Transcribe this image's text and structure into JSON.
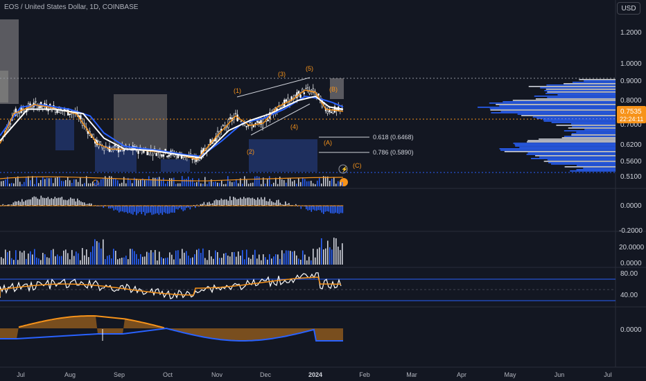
{
  "header": {
    "title": "EOS / United States Dollar, 1D, COINBASE",
    "currency_button": "USD"
  },
  "price_axis": {
    "ticks": [
      "1.2000",
      "1.0000",
      "0.9000",
      "0.8000",
      "0.6200",
      "0.5600",
      "0.5100"
    ],
    "hidden_tick": "0.7000",
    "current_price": "0.7535",
    "countdown": "22:24:11"
  },
  "macd_axis": {
    "ticks": [
      "0.0000",
      "-0.2000"
    ]
  },
  "volume_axis": {
    "ticks": [
      "20.0000",
      "0.0000"
    ]
  },
  "rsi_axis": {
    "ticks": [
      "80.00",
      "40.00"
    ]
  },
  "osc_axis": {
    "ticks": [
      "0.0000"
    ]
  },
  "time_axis": {
    "ticks": [
      "Jul",
      "Aug",
      "Sep",
      "Oct",
      "Nov",
      "Dec",
      "2024",
      "Feb",
      "Mar",
      "Apr",
      "May",
      "Jun",
      "Jul"
    ]
  },
  "annotations": {
    "waves": [
      "(1)",
      "(2)",
      "(3)",
      "(4)",
      "(5)",
      "(A)",
      "(B)",
      "(C)"
    ],
    "fib_618": "0.618 (0.6468)",
    "fib_786": "0.786 (0.5890)"
  },
  "colors": {
    "background": "#131722",
    "ema_fast": "#f7931a",
    "ema_slow": "#2962ff",
    "white_ma": "#ffffff",
    "candles": "#ffffff",
    "zone": "#1e2f5e",
    "grey_zone": "#4a4a4f",
    "dotted_level": "#f7931a",
    "profile": "#2962ff"
  },
  "chart_data": {
    "type": "line",
    "title": "EOS / United States Dollar, 1D, COINBASE",
    "x_range": [
      "Jul",
      "Jul"
    ],
    "price_ylim": [
      0.5,
      1.3
    ],
    "series": [
      {
        "points": [
          [
            0,
            0.62
          ],
          [
            20,
            0.74
          ],
          [
            50,
            0.78
          ],
          [
            70,
            0.77
          ],
          [
            110,
            0.74
          ],
          [
            140,
            0.62
          ],
          [
            160,
            0.6
          ],
          [
            190,
            0.6
          ],
          [
            230,
            0.59
          ],
          [
            260,
            0.58
          ],
          [
            285,
            0.565
          ],
          [
            310,
            0.64
          ],
          [
            340,
            0.73
          ],
          [
            360,
            0.69
          ],
          [
            380,
            0.7
          ],
          [
            400,
            0.77
          ],
          [
            420,
            0.8
          ],
          [
            440,
            0.85
          ],
          [
            455,
            0.84
          ],
          [
            470,
            0.76
          ],
          [
            495,
            0.75
          ]
        ]
      },
      {
        "points": [
          [
            0,
            0.65
          ],
          [
            30,
            0.77
          ],
          [
            60,
            0.78
          ],
          [
            100,
            0.76
          ],
          [
            130,
            0.73
          ],
          [
            150,
            0.66
          ],
          [
            180,
            0.61
          ],
          [
            230,
            0.595
          ],
          [
            270,
            0.58
          ],
          [
            290,
            0.575
          ],
          [
            320,
            0.63
          ],
          [
            350,
            0.7
          ],
          [
            380,
            0.72
          ],
          [
            410,
            0.76
          ],
          [
            440,
            0.82
          ],
          [
            460,
            0.81
          ],
          [
            480,
            0.79
          ],
          [
            495,
            0.77
          ]
        ]
      },
      {
        "points": [
          [
            0,
            0.63
          ],
          [
            40,
            0.76
          ],
          [
            80,
            0.76
          ],
          [
            120,
            0.74
          ],
          [
            150,
            0.64
          ],
          [
            180,
            0.6
          ],
          [
            220,
            0.595
          ],
          [
            260,
            0.58
          ],
          [
            290,
            0.57
          ],
          [
            330,
            0.67
          ],
          [
            360,
            0.71
          ],
          [
            390,
            0.74
          ],
          [
            430,
            0.8
          ],
          [
            455,
            0.82
          ],
          [
            475,
            0.77
          ],
          [
            495,
            0.76
          ]
        ]
      }
    ]
  }
}
